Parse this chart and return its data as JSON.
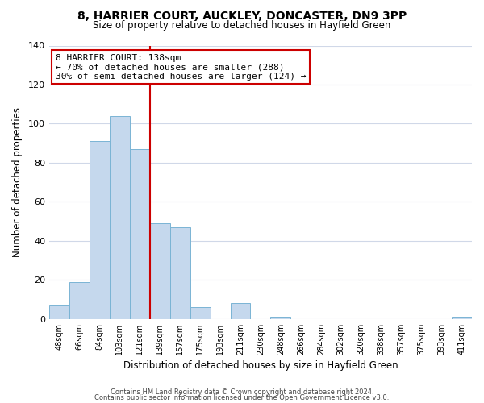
{
  "title": "8, HARRIER COURT, AUCKLEY, DONCASTER, DN9 3PP",
  "subtitle": "Size of property relative to detached houses in Hayfield Green",
  "xlabel": "Distribution of detached houses by size in Hayfield Green",
  "ylabel": "Number of detached properties",
  "bin_labels": [
    "48sqm",
    "66sqm",
    "84sqm",
    "103sqm",
    "121sqm",
    "139sqm",
    "157sqm",
    "175sqm",
    "193sqm",
    "211sqm",
    "230sqm",
    "248sqm",
    "266sqm",
    "284sqm",
    "302sqm",
    "320sqm",
    "338sqm",
    "357sqm",
    "375sqm",
    "393sqm",
    "411sqm"
  ],
  "bar_heights": [
    7,
    19,
    91,
    104,
    87,
    49,
    47,
    6,
    0,
    8,
    0,
    1,
    0,
    0,
    0,
    0,
    0,
    0,
    0,
    0,
    1
  ],
  "bar_color": "#c5d8ed",
  "bar_edge_color": "#7ab4d4",
  "highlight_line_color": "#cc0000",
  "annotation_title": "8 HARRIER COURT: 138sqm",
  "annotation_line1": "← 70% of detached houses are smaller (288)",
  "annotation_line2": "30% of semi-detached houses are larger (124) →",
  "annotation_box_color": "#ffffff",
  "annotation_box_edge": "#cc0000",
  "ylim": [
    0,
    140
  ],
  "yticks": [
    0,
    20,
    40,
    60,
    80,
    100,
    120,
    140
  ],
  "footer1": "Contains HM Land Registry data © Crown copyright and database right 2024.",
  "footer2": "Contains public sector information licensed under the Open Government Licence v3.0.",
  "background_color": "#ffffff",
  "grid_color": "#d0d8e8"
}
